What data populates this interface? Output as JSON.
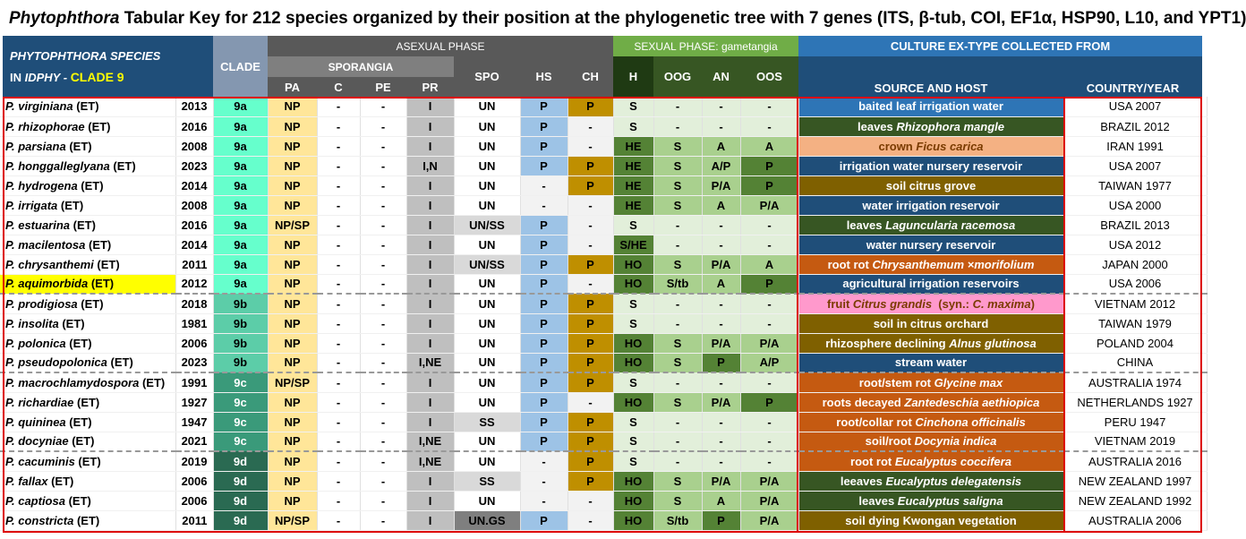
{
  "title": {
    "genus": "Phytophthora",
    "rest": "  Tabular Key for 212 species organized by their position at the phylogenetic tree with 7 genes (ITS, β-tub, COI, EF1α, HSP90, L10, and YPT1)"
  },
  "header": {
    "species_line1": "PHYTOPHTHORA  SPECIES",
    "species_line2a": "IN ",
    "species_line2b": "IDPHY - ",
    "species_line2c": "CLADE 9",
    "clade": "CLADE",
    "asexual": "ASEXUAL PHASE",
    "sporangia": "SPORANGIA",
    "pa": "PA",
    "c": "C",
    "pe": "PE",
    "pr": "PR",
    "spo": "SPO",
    "hs": "HS",
    "ch": "CH",
    "sexual": "SEXUAL PHASE: gametangia",
    "h": "H",
    "oog": "OOG",
    "an": "AN",
    "oos": "OOS",
    "culture": "CULTURE EX-TYPE COLLECTED FROM",
    "source": "SOURCE AND HOST",
    "country": "COUNTRY/YEAR"
  },
  "colors": {
    "header_dark": "#1f4e79",
    "header_gray": "#595959",
    "header_green": "#70ad47",
    "header_blue": "#2e75b6",
    "clade_a": "#66ffcc",
    "clade_b": "#5ccda8",
    "clade_c": "#3a9a7a",
    "clade_d": "#2a6a52",
    "pa": "#ffe699",
    "pr": "#bfbfbf",
    "hs": "#9dc3e6",
    "ch": "#bf8f00",
    "highlight": "#ffff00",
    "border": "#dd0000"
  },
  "rows": [
    {
      "sp": "P. virginiana",
      "et": " (ET)",
      "year": "2013",
      "clade": "9a",
      "pa": "NP",
      "c": "-",
      "pe": "-",
      "pr": "I",
      "spo": "UN",
      "hs": "P",
      "ch": "P",
      "h": "S",
      "oog": "-",
      "an": "-",
      "oos": "-",
      "src": [
        [
          "baited leaf irrigation water",
          0
        ]
      ],
      "srcbg": "#2e75b6",
      "cty": "USA 2007"
    },
    {
      "sp": "P. rhizophorae",
      "et": " (ET)",
      "year": "2016",
      "clade": "9a",
      "pa": "NP",
      "c": "-",
      "pe": "-",
      "pr": "I",
      "spo": "UN",
      "hs": "P",
      "ch": "-",
      "h": "S",
      "oog": "-",
      "an": "-",
      "oos": "-",
      "src": [
        [
          "leaves ",
          0
        ],
        [
          "Rhizophora mangle",
          1
        ]
      ],
      "srcbg": "#375623",
      "cty": "BRAZIL 2012"
    },
    {
      "sp": "P. parsiana",
      "et": " (ET)",
      "year": "2008",
      "clade": "9a",
      "pa": "NP",
      "c": "-",
      "pe": "-",
      "pr": "I",
      "spo": "UN",
      "hs": "P",
      "ch": "-",
      "h": "HE",
      "oog": "S",
      "an": "A",
      "oos": "A",
      "src": [
        [
          "crown ",
          0
        ],
        [
          "Ficus carica",
          1
        ]
      ],
      "srcbg": "#f4b183",
      "srcdark": true,
      "cty": "IRAN 1991"
    },
    {
      "sp": "P. honggalleglyana",
      "et": " (ET)",
      "year": "2023",
      "clade": "9a",
      "pa": "NP",
      "c": "-",
      "pe": "-",
      "pr": "I,N",
      "spo": "UN",
      "hs": "P",
      "ch": "P",
      "h": "HE",
      "oog": "S",
      "an": "A/P",
      "oos": "P",
      "src": [
        [
          "irrigation water nursery reservoir",
          0
        ]
      ],
      "srcbg": "#1f4e79",
      "cty": "USA 2007"
    },
    {
      "sp": "P. hydrogena",
      "et": " (ET)",
      "year": "2014",
      "clade": "9a",
      "pa": "NP",
      "c": "-",
      "pe": "-",
      "pr": "I",
      "spo": "UN",
      "hs": "-",
      "ch": "P",
      "h": "HE",
      "oog": "S",
      "an": "P/A",
      "oos": "P",
      "src": [
        [
          "soil citrus grove",
          0
        ]
      ],
      "srcbg": "#7f6000",
      "cty": "TAIWAN 1977"
    },
    {
      "sp": "P. irrigata",
      "et": " (ET)",
      "year": "2008",
      "clade": "9a",
      "pa": "NP",
      "c": "-",
      "pe": "-",
      "pr": "I",
      "spo": "UN",
      "hs": "-",
      "ch": "-",
      "h": "HE",
      "oog": "S",
      "an": "A",
      "oos": "P/A",
      "src": [
        [
          "water irrigation reservoir",
          0
        ]
      ],
      "srcbg": "#1f4e79",
      "cty": "USA 2000"
    },
    {
      "sp": "P. estuarina",
      "et": " (ET)",
      "year": "2016",
      "clade": "9a",
      "pa": "NP/SP",
      "c": "-",
      "pe": "-",
      "pr": "I",
      "spo": "UN/SS",
      "hs": "P",
      "ch": "-",
      "h": "S",
      "oog": "-",
      "an": "-",
      "oos": "-",
      "src": [
        [
          "leaves ",
          0
        ],
        [
          "Laguncularia racemosa",
          1
        ]
      ],
      "srcbg": "#375623",
      "cty": "BRAZIL 2013"
    },
    {
      "sp": "P. macilentosa",
      "et": " (ET)",
      "year": "2014",
      "clade": "9a",
      "pa": "NP",
      "c": "-",
      "pe": "-",
      "pr": "I",
      "spo": "UN",
      "hs": "P",
      "ch": "-",
      "h": "S/HE",
      "oog": "-",
      "an": "-",
      "oos": "-",
      "src": [
        [
          "water nursery reservoir",
          0
        ]
      ],
      "srcbg": "#1f4e79",
      "cty": "USA 2012"
    },
    {
      "sp": "P. chrysanthemi",
      "et": " (ET)",
      "year": "2011",
      "clade": "9a",
      "pa": "NP",
      "c": "-",
      "pe": "-",
      "pr": "I",
      "spo": "UN/SS",
      "hs": "P",
      "ch": "P",
      "h": "HO",
      "oog": "S",
      "an": "P/A",
      "oos": "A",
      "src": [
        [
          "root rot ",
          0
        ],
        [
          "Chrysanthemum ×morifolium",
          1
        ]
      ],
      "srcbg": "#c55a11",
      "cty": "JAPAN 2000"
    },
    {
      "sp": "P. aquimorbida",
      "et": " (ET)",
      "year": "2012",
      "clade": "9a",
      "pa": "NP",
      "c": "-",
      "pe": "-",
      "pr": "I",
      "spo": "UN",
      "hs": "P",
      "ch": "-",
      "h": "HO",
      "oog": "S/tb",
      "an": "A",
      "oos": "P",
      "src": [
        [
          "agricultural irrigation reservoirs",
          0
        ]
      ],
      "srcbg": "#1f4e79",
      "cty": "USA 2006",
      "hl": true
    },
    {
      "sp": "P. prodigiosa",
      "et": " (ET)",
      "year": "2018",
      "clade": "9b",
      "pa": "NP",
      "c": "-",
      "pe": "-",
      "pr": "I",
      "spo": "UN",
      "hs": "P",
      "ch": "P",
      "h": "S",
      "oog": "-",
      "an": "-",
      "oos": "-",
      "src": [
        [
          "fruit ",
          0
        ],
        [
          "Citrus grandis",
          1
        ],
        [
          "  (syn.: ",
          0
        ],
        [
          "C. maxima",
          1
        ],
        [
          ")",
          0
        ]
      ],
      "srcbg": "#ff99cc",
      "srcdark": true,
      "cty": "VIETNAM 2012",
      "sep": true
    },
    {
      "sp": "P. insolita",
      "et": " (ET)",
      "year": "1981",
      "clade": "9b",
      "pa": "NP",
      "c": "-",
      "pe": "-",
      "pr": "I",
      "spo": "UN",
      "hs": "P",
      "ch": "P",
      "h": "S",
      "oog": "-",
      "an": "-",
      "oos": "-",
      "src": [
        [
          "soil in citrus orchard",
          0
        ]
      ],
      "srcbg": "#7f6000",
      "cty": "TAIWAN 1979"
    },
    {
      "sp": "P. polonica",
      "et": " (ET)",
      "year": "2006",
      "clade": "9b",
      "pa": "NP",
      "c": "-",
      "pe": "-",
      "pr": "I",
      "spo": "UN",
      "hs": "P",
      "ch": "P",
      "h": "HO",
      "oog": "S",
      "an": "P/A",
      "oos": "P/A",
      "src": [
        [
          "rhizosphere declining ",
          0
        ],
        [
          "Alnus glutinosa",
          1
        ]
      ],
      "srcbg": "#7f6000",
      "cty": "POLAND 2004"
    },
    {
      "sp": "P. pseudopolonica",
      "et": " (ET)",
      "year": "2023",
      "clade": "9b",
      "pa": "NP",
      "c": "-",
      "pe": "-",
      "pr": "I,NE",
      "spo": "UN",
      "hs": "P",
      "ch": "P",
      "h": "HO",
      "oog": "S",
      "an": "P",
      "oos": "A/P",
      "src": [
        [
          "stream water",
          0
        ]
      ],
      "srcbg": "#1f4e79",
      "cty": "CHINA"
    },
    {
      "sp": "P. macrochlamydospora",
      "et": " (ET)",
      "year": "1991",
      "clade": "9c",
      "pa": "NP/SP",
      "c": "-",
      "pe": "-",
      "pr": "I",
      "spo": "UN",
      "hs": "P",
      "ch": "P",
      "h": "S",
      "oog": "-",
      "an": "-",
      "oos": "-",
      "src": [
        [
          "root/stem rot ",
          0
        ],
        [
          "Glycine max",
          1
        ]
      ],
      "srcbg": "#c55a11",
      "cty": "AUSTRALIA 1974",
      "sep": true
    },
    {
      "sp": "P. richardiae",
      "et": " (ET)",
      "year": "1927",
      "clade": "9c",
      "pa": "NP",
      "c": "-",
      "pe": "-",
      "pr": "I",
      "spo": "UN",
      "hs": "P",
      "ch": "-",
      "h": "HO",
      "oog": "S",
      "an": "P/A",
      "oos": "P",
      "src": [
        [
          "roots decayed ",
          0
        ],
        [
          "Zantedeschia aethiopica",
          1
        ]
      ],
      "srcbg": "#c55a11",
      "cty": "NETHERLANDS 1927"
    },
    {
      "sp": "P. quininea",
      "et": " (ET)",
      "year": "1947",
      "clade": "9c",
      "pa": "NP",
      "c": "-",
      "pe": "-",
      "pr": "I",
      "spo": "SS",
      "hs": "P",
      "ch": "P",
      "h": "S",
      "oog": "-",
      "an": "-",
      "oos": "-",
      "src": [
        [
          "root/collar rot ",
          0
        ],
        [
          "Cinchona officinalis",
          1
        ]
      ],
      "srcbg": "#c55a11",
      "cty": "PERU 1947"
    },
    {
      "sp": "P. docyniae",
      "et": " (ET)",
      "year": "2021",
      "clade": "9c",
      "pa": "NP",
      "c": "-",
      "pe": "-",
      "pr": "I,NE",
      "spo": "UN",
      "hs": "P",
      "ch": "P",
      "h": "S",
      "oog": "-",
      "an": "-",
      "oos": "-",
      "src": [
        [
          "soil/root ",
          0
        ],
        [
          "Docynia indica",
          1
        ]
      ],
      "srcbg": "#c55a11",
      "cty": "VIETNAM 2019"
    },
    {
      "sp": "P. cacuminis",
      "et": " (ET)",
      "year": "2019",
      "clade": "9d",
      "pa": "NP",
      "c": "-",
      "pe": "-",
      "pr": "I,NE",
      "spo": "UN",
      "hs": "-",
      "ch": "P",
      "h": "S",
      "oog": "-",
      "an": "-",
      "oos": "-",
      "src": [
        [
          "root rot ",
          0
        ],
        [
          "Eucalyptus coccifera",
          1
        ]
      ],
      "srcbg": "#c55a11",
      "cty": "AUSTRALIA 2016",
      "sep": true
    },
    {
      "sp": "P. fallax",
      "et": " (ET)",
      "year": "2006",
      "clade": "9d",
      "pa": "NP",
      "c": "-",
      "pe": "-",
      "pr": "I",
      "spo": "SS",
      "hs": "-",
      "ch": "P",
      "h": "HO",
      "oog": "S",
      "an": "P/A",
      "oos": "P/A",
      "src": [
        [
          "leeaves ",
          0
        ],
        [
          "Eucalyptus delegatensis",
          1
        ]
      ],
      "srcbg": "#375623",
      "cty": "NEW ZEALAND 1997"
    },
    {
      "sp": "P. captiosa",
      "et": " (ET)",
      "year": "2006",
      "clade": "9d",
      "pa": "NP",
      "c": "-",
      "pe": "-",
      "pr": "I",
      "spo": "UN",
      "hs": "-",
      "ch": "-",
      "h": "HO",
      "oog": "S",
      "an": "A",
      "oos": "P/A",
      "src": [
        [
          "leaves ",
          0
        ],
        [
          "Eucalyptus saligna",
          1
        ]
      ],
      "srcbg": "#375623",
      "cty": "NEW ZEALAND 1992"
    },
    {
      "sp": "P. constricta",
      "et": " (ET)",
      "year": "2011",
      "clade": "9d",
      "pa": "NP/SP",
      "c": "-",
      "pe": "-",
      "pr": "I",
      "spo": "UN.GS",
      "hs": "P",
      "ch": "-",
      "h": "HO",
      "oog": "S/tb",
      "an": "P",
      "oos": "P/A",
      "src": [
        [
          "soil dying Kwongan vegetation",
          0
        ]
      ],
      "srcbg": "#7f6000",
      "cty": "AUSTRALIA 2006"
    }
  ]
}
